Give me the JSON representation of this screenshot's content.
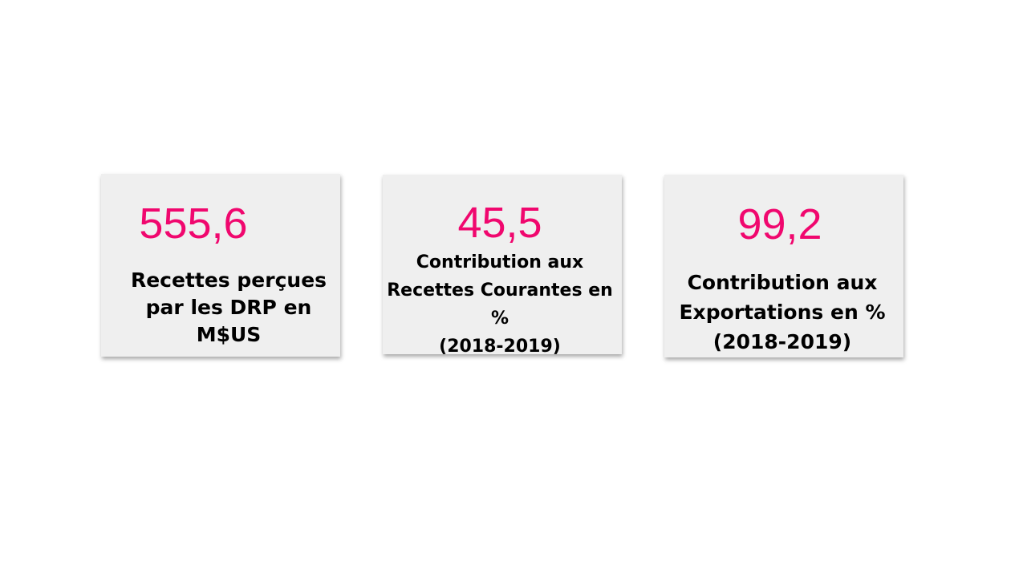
{
  "colors": {
    "value_color": "#f0076e",
    "card_background": "#efefef",
    "label_color": "#000000"
  },
  "cards": [
    {
      "value": "555,6",
      "label": "Recettes perçues\npar les DRP en\nM$US"
    },
    {
      "value": "45,5",
      "label": "Contribution aux\nRecettes Courantes en\n%\n(2018-2019)"
    },
    {
      "value": "99,2",
      "label": "Contribution aux\nExportations en %\n(2018-2019)"
    }
  ]
}
